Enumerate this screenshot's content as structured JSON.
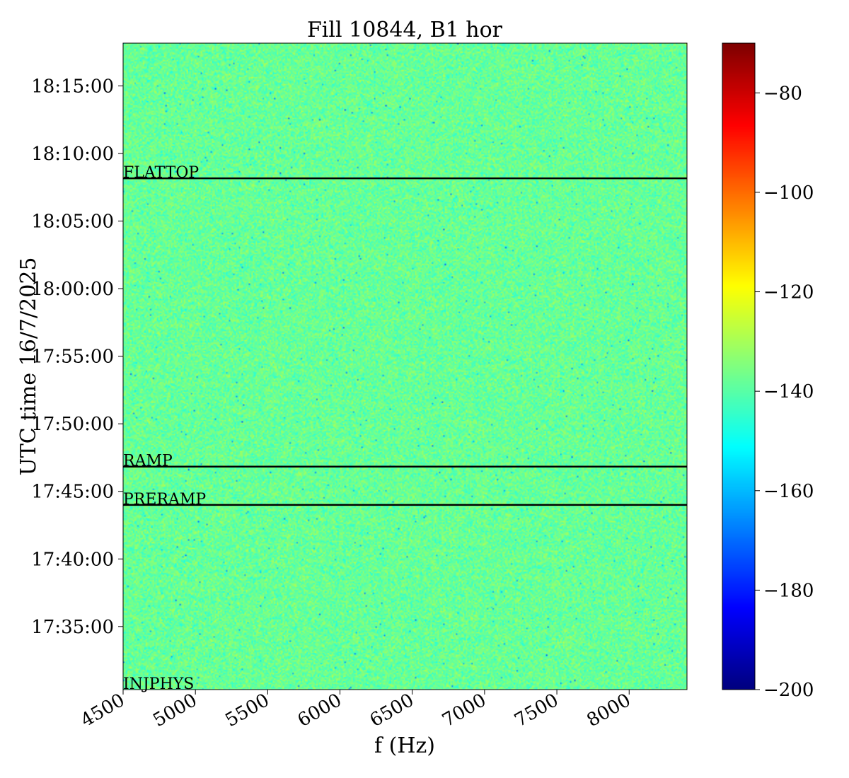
{
  "chart_data": {
    "type": "heatmap",
    "title": "Fill 10844, B1 hor",
    "xlabel": "f (Hz)",
    "ylabel": "UTC time 16/7/2025",
    "xlim": [
      4500,
      8400
    ],
    "ylim": [
      "17:30:20",
      "18:18:10"
    ],
    "x_ticks": [
      4500,
      5000,
      5500,
      6000,
      6500,
      7000,
      7500,
      8000
    ],
    "y_ticks": [
      "17:35:00",
      "17:40:00",
      "17:45:00",
      "17:50:00",
      "17:55:00",
      "18:00:00",
      "18:05:00",
      "18:10:00",
      "18:15:00"
    ],
    "colorbar": {
      "colormap": "jet",
      "range": [
        -200,
        -70
      ],
      "ticks": [
        -80,
        -100,
        -120,
        -140,
        -160,
        -180,
        -200
      ]
    },
    "typical_value": -138,
    "grid": false,
    "annotations": [
      {
        "label": "FLATTOP",
        "time": "18:08:10"
      },
      {
        "label": "RAMP",
        "time": "17:46:50"
      },
      {
        "label": "PRERAMP",
        "time": "17:44:00"
      },
      {
        "label": "INJPHYS",
        "time": "17:30:20"
      }
    ]
  }
}
